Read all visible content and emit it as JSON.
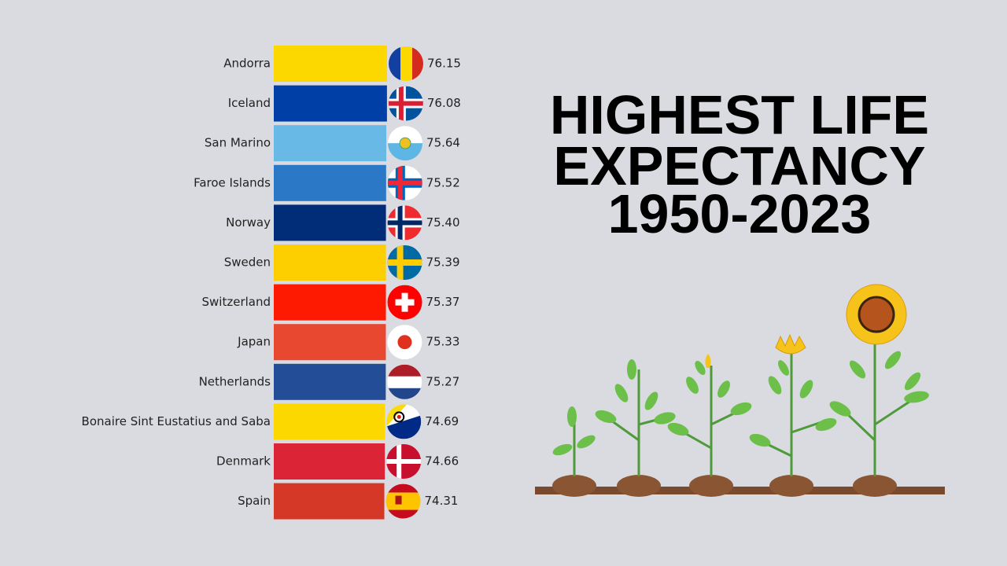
{
  "chart_data": {
    "type": "bar",
    "orientation": "horizontal",
    "title": [
      "HIGHEST LIFE",
      "EXPECTANCY",
      "1950-2023"
    ],
    "categories": [
      "Andorra",
      "Iceland",
      "San Marino",
      "Faroe Islands",
      "Norway",
      "Sweden",
      "Switzerland",
      "Japan",
      "Netherlands",
      "Bonaire Sint Eustatius and Saba",
      "Denmark",
      "Spain"
    ],
    "values": [
      76.15,
      76.08,
      75.64,
      75.52,
      75.4,
      75.39,
      75.37,
      75.33,
      75.27,
      74.69,
      74.66,
      74.31
    ],
    "value_labels": [
      "76.15",
      "76.08",
      "75.64",
      "75.52",
      "75.40",
      "75.39",
      "75.37",
      "75.33",
      "75.27",
      "74.69",
      "74.66",
      "74.31"
    ],
    "colors": [
      "#fdd800",
      "#003fa6",
      "#68b9e6",
      "#2a78c6",
      "#012c78",
      "#fdcf00",
      "#fe1a00",
      "#e84830",
      "#244d98",
      "#fdd800",
      "#dc2437",
      "#d53827"
    ]
  }
}
